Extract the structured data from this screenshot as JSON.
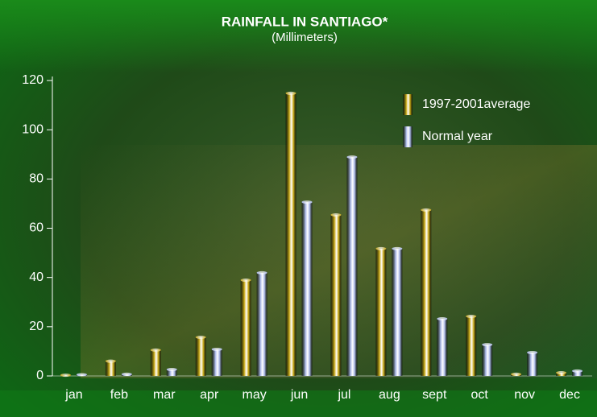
{
  "chart_data": {
    "type": "bar",
    "title": "RAINFALL IN SANTIAGO*",
    "subtitle": "(Millimeters)",
    "categories": [
      "jan",
      "feb",
      "mar",
      "apr",
      "may",
      "jun",
      "jul",
      "aug",
      "sept",
      "oct",
      "nov",
      "dec"
    ],
    "series": [
      {
        "name": "1997-2001average",
        "color": "#c8a814",
        "values": [
          0.3,
          6,
          10.5,
          15.7,
          38.9,
          114.8,
          65.4,
          51.7,
          67.4,
          24.2,
          0.7,
          1.3
        ]
      },
      {
        "name": "Normal year",
        "color": "#aab8e8",
        "values": [
          0.5,
          0.7,
          2.6,
          10.8,
          41.9,
          70.6,
          88.9,
          51.7,
          23.2,
          12.7,
          9.5,
          2
        ]
      }
    ],
    "ylim": [
      0,
      120
    ],
    "yticks": [
      0,
      20,
      40,
      60,
      80,
      100,
      120
    ],
    "grid": false,
    "legend": "top-right"
  }
}
